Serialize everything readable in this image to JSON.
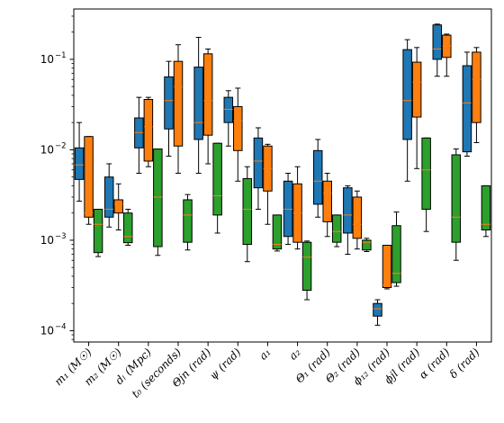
{
  "chart_data": {
    "type": "boxplot",
    "y_scale": "log",
    "ylim": [
      7.5e-05,
      0.36
    ],
    "y_ticks": [
      {
        "value": 0.0001,
        "base": "10",
        "exp": "−4"
      },
      {
        "value": 0.001,
        "base": "10",
        "exp": "−3"
      },
      {
        "value": 0.01,
        "base": "10",
        "exp": "−2"
      },
      {
        "value": 0.1,
        "base": "10",
        "exp": "−1"
      }
    ],
    "grid": false,
    "legend": "none",
    "series_colors": [
      "#1f77b4",
      "#ff7f0e",
      "#2ca02c"
    ],
    "median_color": "#ff7f0e",
    "categories": [
      {
        "label": "m₁ (M☉)"
      },
      {
        "label": "m₂ (M☉)"
      },
      {
        "label": "dₗ (Mpc)"
      },
      {
        "label": "t₀ (seconds)"
      },
      {
        "label": "Θjn (rad)"
      },
      {
        "label": "ψ (rad)"
      },
      {
        "label": "a₁"
      },
      {
        "label": "a₂"
      },
      {
        "label": "Θ₁ (rad)"
      },
      {
        "label": "Θ₂ (rad)"
      },
      {
        "label": "ϕ₁₂ (rad)"
      },
      {
        "label": "ϕjl (rad)"
      },
      {
        "label": "α (rad)"
      },
      {
        "label": "δ (rad)"
      }
    ],
    "series": [
      {
        "boxes": [
          {
            "whislo": 0.0027,
            "q1": 0.0047,
            "med": 0.0068,
            "q3": 0.0105,
            "whishi": 0.02
          },
          {
            "whislo": 0.0014,
            "q1": 0.0018,
            "med": 0.0022,
            "q3": 0.005,
            "whishi": 0.007
          },
          {
            "whislo": 0.0055,
            "q1": 0.0105,
            "med": 0.0155,
            "q3": 0.0225,
            "whishi": 0.038
          },
          {
            "whislo": 0.0085,
            "q1": 0.017,
            "med": 0.035,
            "q3": 0.064,
            "whishi": 0.095
          },
          {
            "whislo": 0.0055,
            "q1": 0.013,
            "med": 0.02,
            "q3": 0.082,
            "whishi": 0.175
          },
          {
            "whislo": 0.011,
            "q1": 0.02,
            "med": 0.028,
            "q3": 0.038,
            "whishi": 0.045
          },
          {
            "whislo": 0.0022,
            "q1": 0.0038,
            "med": 0.0075,
            "q3": 0.0135,
            "whishi": 0.0175
          },
          {
            "whislo": 0.0009,
            "q1": 0.0011,
            "med": 0.0022,
            "q3": 0.0045,
            "whishi": 0.0055
          },
          {
            "whislo": 0.0018,
            "q1": 0.0025,
            "med": 0.0045,
            "q3": 0.0098,
            "whishi": 0.013
          },
          {
            "whislo": 0.0007,
            "q1": 0.0012,
            "med": 0.0019,
            "q3": 0.0038,
            "whishi": 0.004
          },
          {
            "whislo": 0.000115,
            "q1": 0.000145,
            "med": 0.000175,
            "q3": 0.0002,
            "whishi": 0.00022
          },
          {
            "whislo": 0.0045,
            "q1": 0.013,
            "med": 0.035,
            "q3": 0.128,
            "whishi": 0.165
          },
          {
            "whislo": 0.065,
            "q1": 0.1,
            "med": 0.13,
            "q3": 0.24,
            "whishi": 0.245
          },
          {
            "whislo": 0.0085,
            "q1": 0.0095,
            "med": 0.033,
            "q3": 0.085,
            "whishi": 0.12
          }
        ]
      },
      {
        "boxes": [
          {
            "whislo": 0.0015,
            "q1": 0.0018,
            "med": 0.002,
            "q3": 0.014,
            "whishi": 0.014
          },
          {
            "whislo": 0.0013,
            "q1": 0.002,
            "med": 0.0025,
            "q3": 0.0028,
            "whishi": 0.0042
          },
          {
            "whislo": 0.0065,
            "q1": 0.0075,
            "med": 0.018,
            "q3": 0.036,
            "whishi": 0.038
          },
          {
            "whislo": 0.0055,
            "q1": 0.011,
            "med": 0.05,
            "q3": 0.095,
            "whishi": 0.145
          },
          {
            "whislo": 0.007,
            "q1": 0.0145,
            "med": 0.035,
            "q3": 0.115,
            "whishi": 0.13
          },
          {
            "whislo": 0.0045,
            "q1": 0.0098,
            "med": 0.021,
            "q3": 0.03,
            "whishi": 0.048
          },
          {
            "whislo": 0.0015,
            "q1": 0.0035,
            "med": 0.0062,
            "q3": 0.011,
            "whishi": 0.0115
          },
          {
            "whislo": 0.0008,
            "q1": 0.00095,
            "med": 0.002,
            "q3": 0.0042,
            "whishi": 0.0065
          },
          {
            "whislo": 0.0011,
            "q1": 0.0016,
            "med": 0.0033,
            "q3": 0.0045,
            "whishi": 0.0055
          },
          {
            "whislo": 0.0008,
            "q1": 0.00105,
            "med": 0.0015,
            "q3": 0.003,
            "whishi": 0.0035
          },
          {
            "whislo": 0.00029,
            "q1": 0.0003,
            "med": 0.00032,
            "q3": 0.00088,
            "whishi": 0.00088
          },
          {
            "whislo": 0.0062,
            "q1": 0.023,
            "med": 0.056,
            "q3": 0.093,
            "whishi": 0.135
          },
          {
            "whislo": 0.065,
            "q1": 0.105,
            "med": 0.14,
            "q3": 0.185,
            "whishi": 0.19
          },
          {
            "whislo": 0.012,
            "q1": 0.02,
            "med": 0.06,
            "q3": 0.12,
            "whishi": 0.135
          }
        ]
      },
      {
        "boxes": [
          {
            "whislo": 0.00066,
            "q1": 0.00073,
            "med": 0.0015,
            "q3": 0.0022,
            "whishi": 0.0022
          },
          {
            "whislo": 0.00088,
            "q1": 0.00094,
            "med": 0.0011,
            "q3": 0.002,
            "whishi": 0.0022
          },
          {
            "whislo": 0.00068,
            "q1": 0.00085,
            "med": 0.003,
            "q3": 0.0102,
            "whishi": 0.0102
          },
          {
            "whislo": 0.00078,
            "q1": 0.00095,
            "med": 0.0019,
            "q3": 0.0028,
            "whishi": 0.0032
          },
          {
            "whislo": 0.0012,
            "q1": 0.0019,
            "med": 0.0031,
            "q3": 0.0118,
            "whishi": 0.0118
          },
          {
            "whislo": 0.00058,
            "q1": 0.0009,
            "med": 0.0022,
            "q3": 0.0048,
            "whishi": 0.0065
          },
          {
            "whislo": 0.00076,
            "q1": 0.0008,
            "med": 0.0009,
            "q3": 0.0019,
            "whishi": 0.0019
          },
          {
            "whislo": 0.00022,
            "q1": 0.00028,
            "med": 0.00065,
            "q3": 0.00095,
            "whishi": 0.00098
          },
          {
            "whislo": 0.00085,
            "q1": 0.00095,
            "med": 0.00125,
            "q3": 0.0019,
            "whishi": 0.0019
          },
          {
            "whislo": 0.00075,
            "q1": 0.00078,
            "med": 0.00095,
            "q3": 0.001,
            "whishi": 0.00105
          },
          {
            "whislo": 0.00031,
            "q1": 0.00034,
            "med": 0.00043,
            "q3": 0.00145,
            "whishi": 0.00205
          },
          {
            "whislo": 0.00125,
            "q1": 0.0022,
            "med": 0.006,
            "q3": 0.0135,
            "whishi": 0.0135
          },
          {
            "whislo": 0.0006,
            "q1": 0.00095,
            "med": 0.0018,
            "q3": 0.0088,
            "whishi": 0.0102
          },
          {
            "whislo": 0.0011,
            "q1": 0.0013,
            "med": 0.0015,
            "q3": 0.004,
            "whishi": 0.004
          }
        ]
      }
    ]
  }
}
